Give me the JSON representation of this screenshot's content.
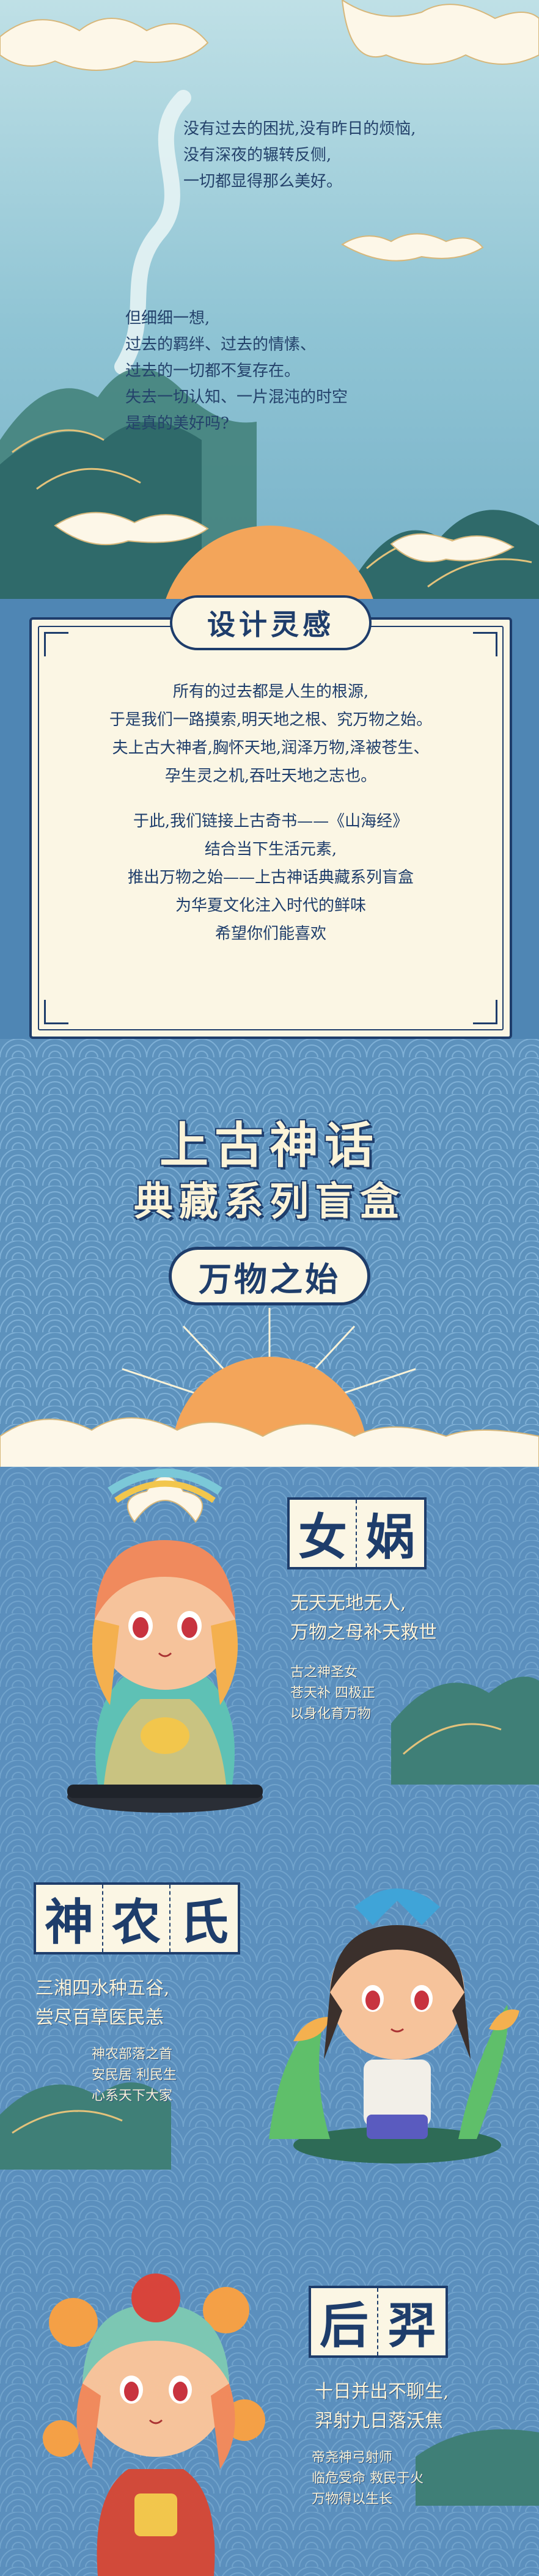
{
  "intro": {
    "poem1": [
      "没有过去的困扰,没有昨日的烦恼,",
      "没有深夜的辗转反侧,",
      "一切都显得那么美好。"
    ],
    "poem2": [
      "但细细一想,",
      "过去的羁绊、过去的情愫、",
      "过去的一切都不复存在。",
      "失去一切认知、一片混沌的时空",
      "是真的美好吗?"
    ]
  },
  "inspiration": {
    "title": "设计灵感",
    "para1": [
      "所有的过去都是人生的根源,",
      "于是我们一路摸索,明天地之根、究万物之始。",
      "夫上古大神者,胸怀天地,润泽万物,泽被苍生、",
      "孕生灵之机,吞吐天地之志也。"
    ],
    "para2": [
      "于此,我们链接上古奇书——《山海经》",
      "结合当下生活元素,",
      "推出万物之始——上古神话典藏系列盲盒",
      "为华夏文化注入时代的鲜味",
      "希望你们能喜欢"
    ]
  },
  "title": {
    "line1": "上古神话",
    "line2": "典藏系列盲盒",
    "subtitle": "万物之始"
  },
  "characters": {
    "nuwa": {
      "name": [
        "女",
        "娲"
      ],
      "lines": [
        "无天无地无人,",
        "万物之母补天救世"
      ],
      "small": [
        "古之神圣女",
        "苍天补 四极正",
        "以身化育万物"
      ]
    },
    "shennong": {
      "name": [
        "神",
        "农",
        "氏"
      ],
      "lines": [
        "三湘四水种五谷,",
        "尝尽百草医民恙"
      ],
      "small": [
        "神农部落之首",
        "安民居 利民生",
        "心系天下大家"
      ]
    },
    "houyi": {
      "name": [
        "后",
        "羿"
      ],
      "lines": [
        "十日并出不聊生,",
        "羿射九日落沃焦"
      ],
      "small": [
        "帝尧神弓射师",
        "临危受命 救民于火",
        "万物得以生长"
      ]
    }
  },
  "colors": {
    "navy": "#1e3d6b",
    "cream": "#fbf6e4",
    "sky": "#8fc4d4",
    "sea": "#5b8fbd",
    "sun": "#f3a55a"
  }
}
